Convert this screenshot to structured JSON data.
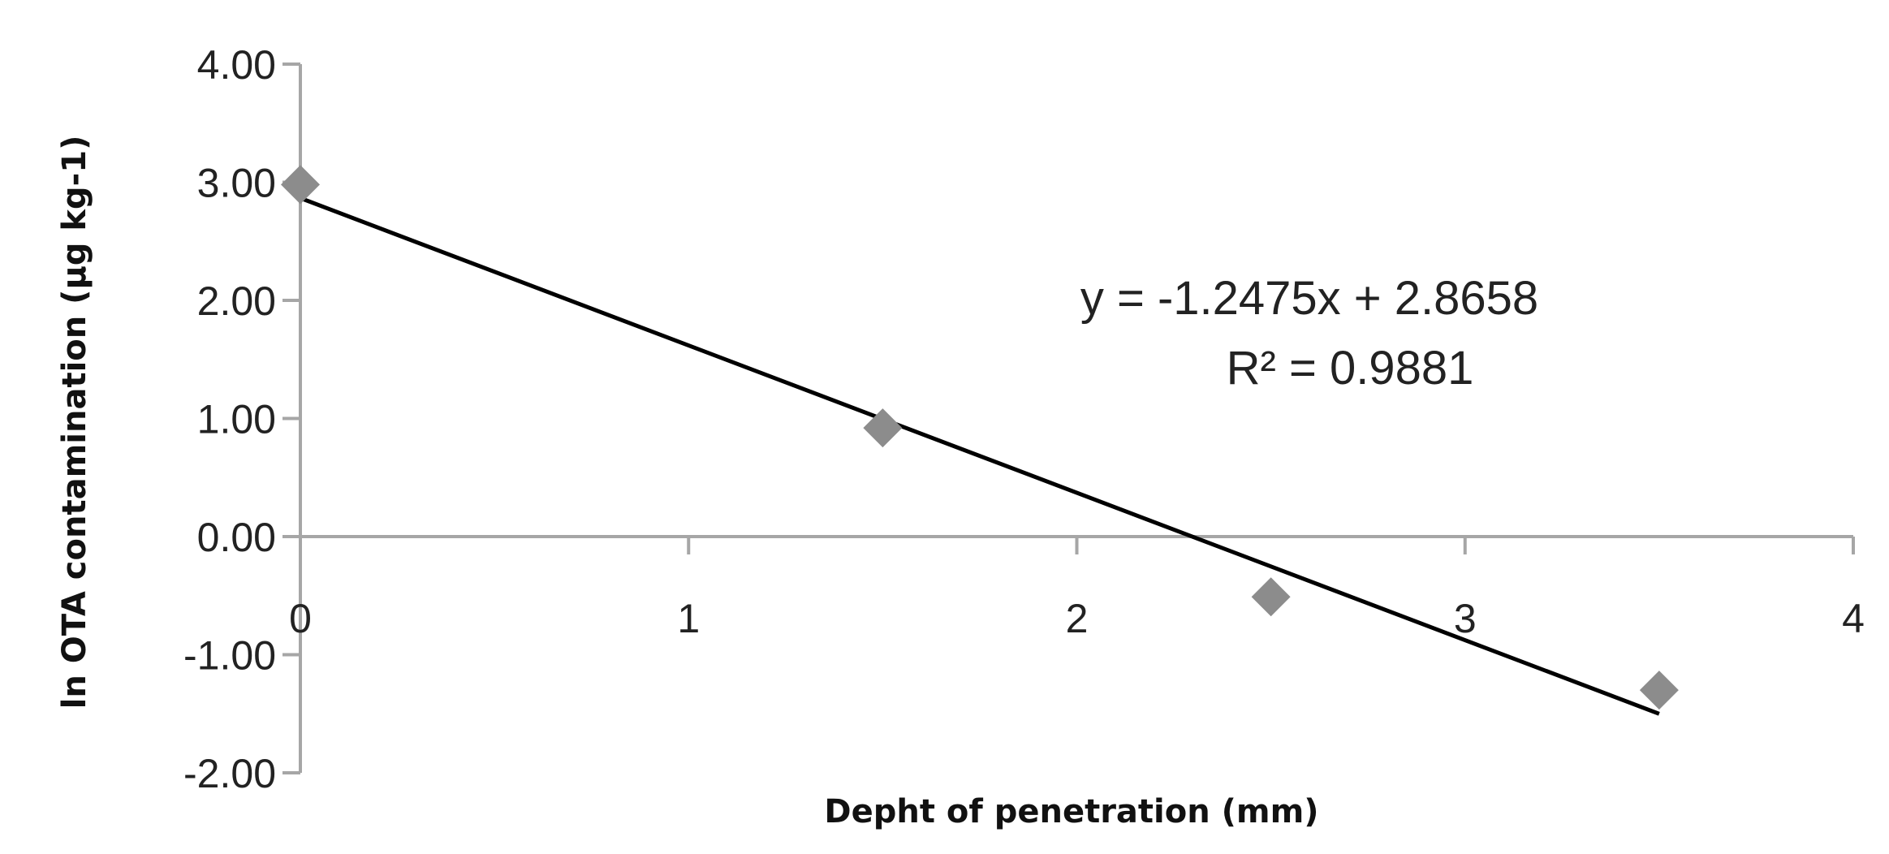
{
  "chart_data": {
    "type": "scatter",
    "title": "",
    "xlabel": "Depht of penetration (mm)",
    "ylabel": "ln OTA contamination (µg kg-1)",
    "xlim": [
      0,
      4
    ],
    "ylim": [
      -2,
      4
    ],
    "x_ticks": [
      0,
      1,
      2,
      3,
      4
    ],
    "x_tick_labels": [
      "0",
      "1",
      "2",
      "3",
      "4"
    ],
    "y_ticks": [
      4,
      3,
      2,
      1,
      0,
      -1,
      -2
    ],
    "y_tick_labels": [
      "4.00",
      "3.00",
      "2.00",
      "1.00",
      "0.00",
      "-1.00",
      "-2.00"
    ],
    "grid": false,
    "legend": "none",
    "series": [
      {
        "marker": "diamond",
        "color": "#8c8c8c",
        "x": [
          0,
          1.5,
          2.5,
          3.5
        ],
        "y": [
          2.98,
          0.92,
          -0.51,
          -1.3
        ]
      }
    ],
    "trendline": {
      "type": "linear",
      "slope": -1.2475,
      "intercept": 2.8658,
      "x_range": [
        0,
        3.5
      ],
      "color": "#000000"
    },
    "annotations": {
      "equation": "y = -1.2475x + 2.8658",
      "r_squared": "R² = 0.9881"
    },
    "axis_color": "#a6a6a6"
  }
}
